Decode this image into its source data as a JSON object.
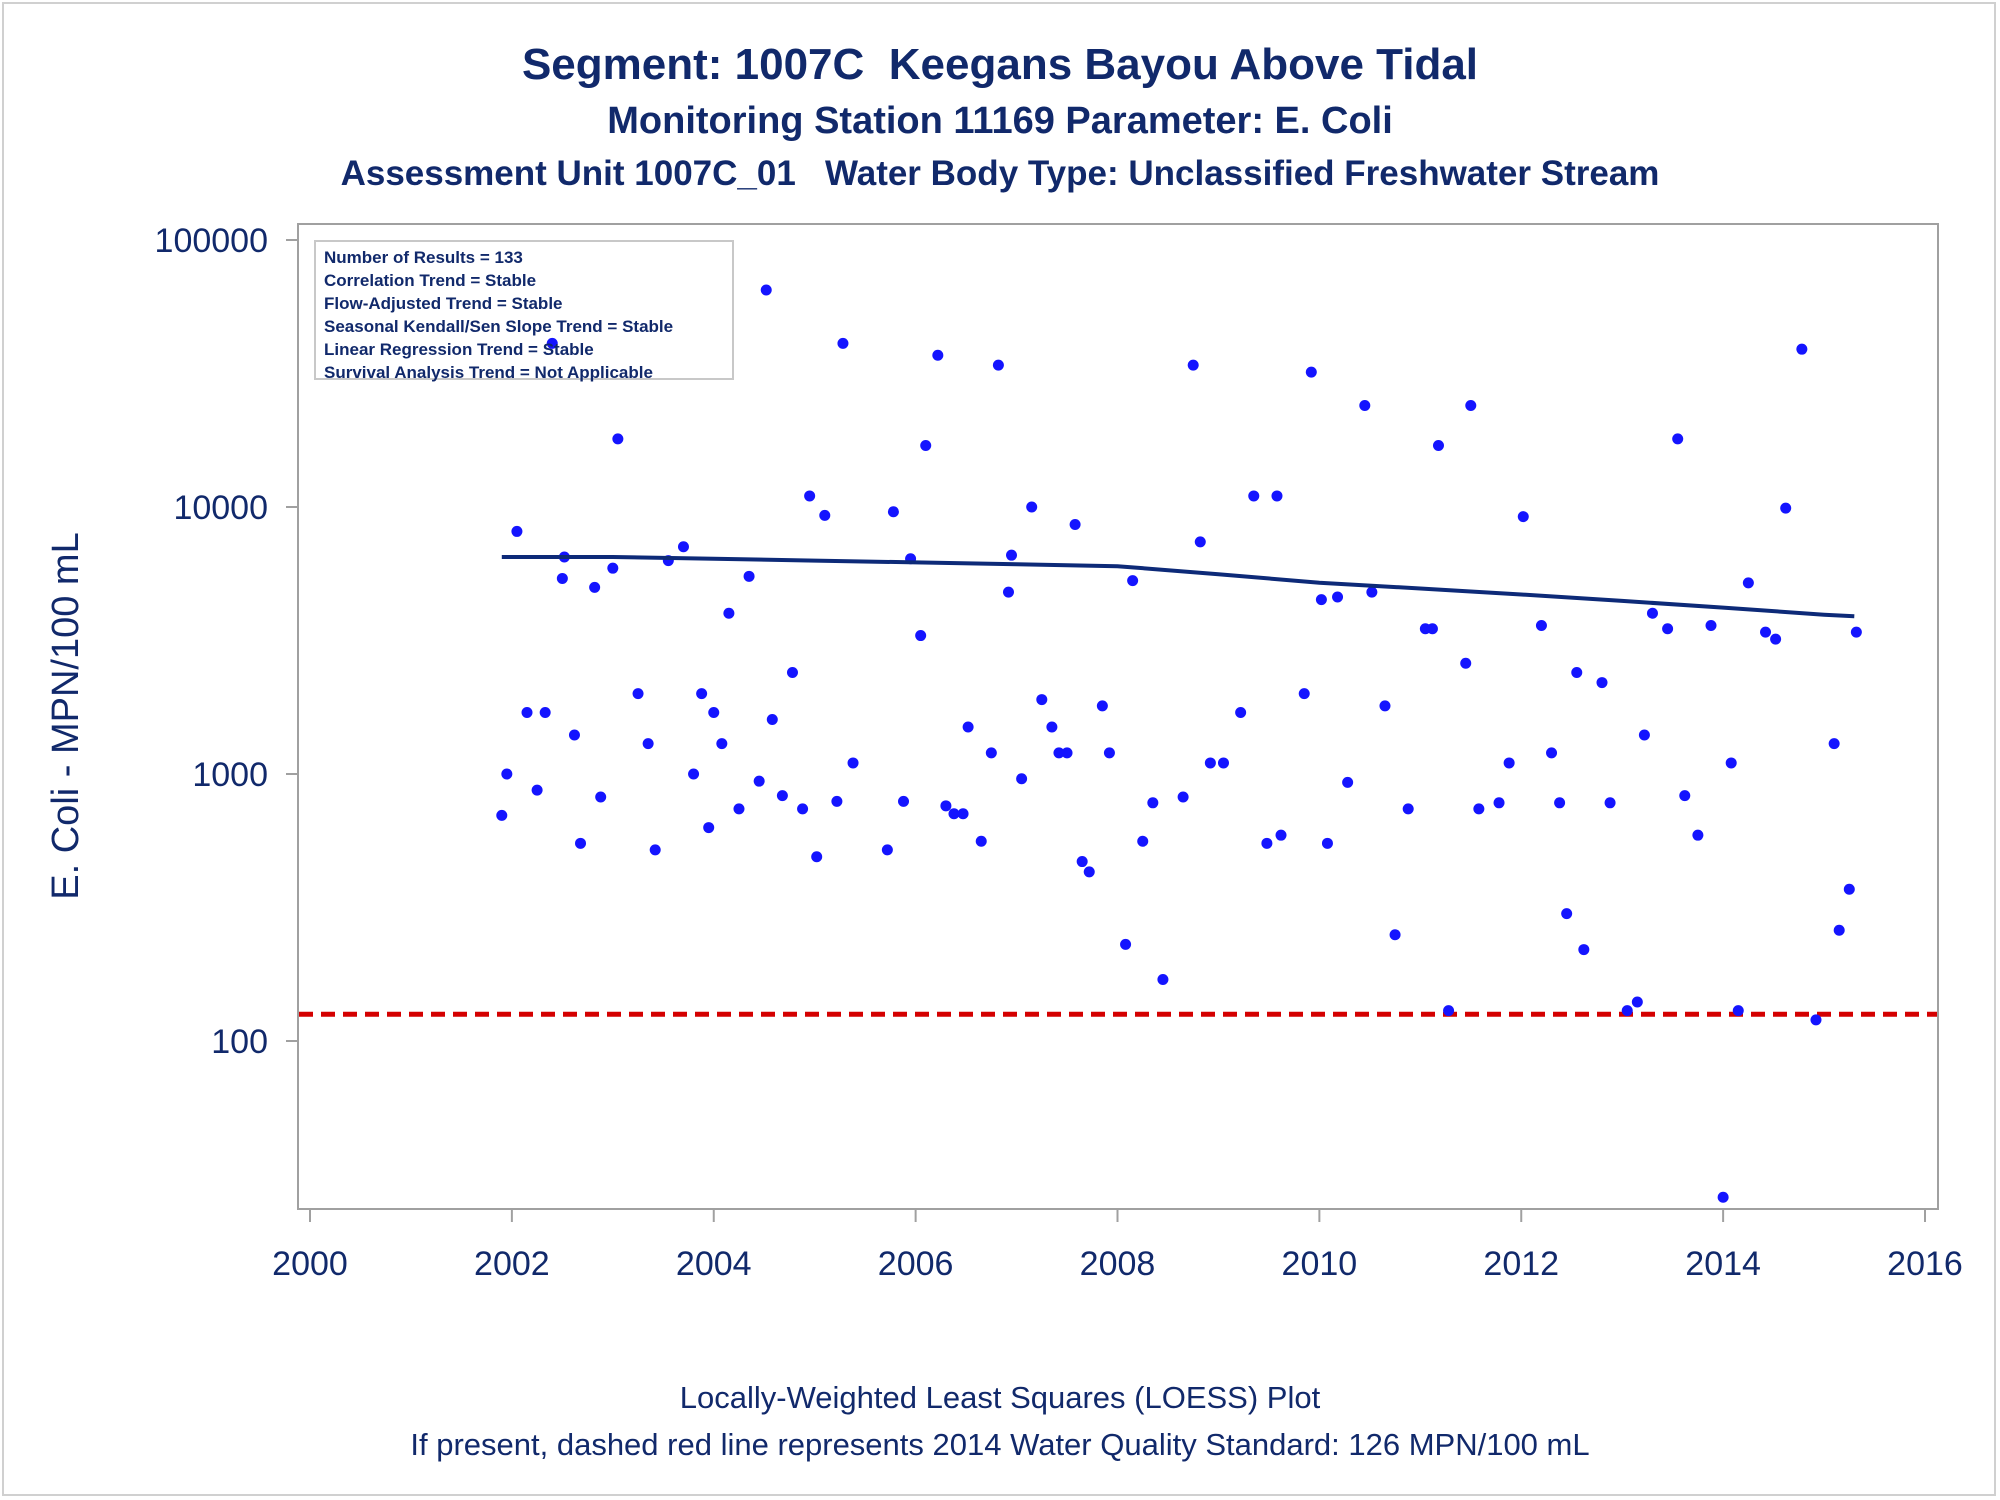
{
  "titles": {
    "line1": "Segment: 1007C  Keegans Bayou Above Tidal",
    "line2": "Monitoring Station 11169 Parameter: E. Coli",
    "line3": "Assessment Unit 1007C_01   Water Body Type: Unclassified Freshwater Stream"
  },
  "footnotes": {
    "line1": "Locally-Weighted Least Squares (LOESS) Plot",
    "line2": "If present, dashed red line represents 2014 Water Quality Standard: 126 MPN/100 mL"
  },
  "legend": {
    "lines": [
      "Number of Results = 133",
      "Correlation Trend = Stable",
      "Flow-Adjusted Trend = Stable",
      "Seasonal Kendall/Sen Slope Trend = Stable",
      "Linear Regression Trend = Stable",
      "Survival Analysis Trend = Not Applicable"
    ]
  },
  "colors": {
    "text": "#11296b",
    "points": "#1414ff",
    "loess": "#0d2a78",
    "standard_line": "#d40000",
    "axis": "#a0a0a0"
  },
  "chart_data": {
    "type": "scatter",
    "xlabel": "",
    "ylabel": "E. Coli - MPN/100 mL",
    "xlim": [
      2000,
      2016
    ],
    "ylim": [
      25,
      120000
    ],
    "yscale": "log",
    "x_ticks": [
      "2000",
      "2002",
      "2004",
      "2006",
      "2008",
      "2010",
      "2012",
      "2014",
      "2016"
    ],
    "y_ticks": [
      "100",
      "1000",
      "10000",
      "100000"
    ],
    "grid": false,
    "legend_position": "top-left",
    "reference_line": {
      "value": 126
    },
    "loess": {
      "x": [
        2001.9,
        2003,
        2004,
        2005,
        2006,
        2007,
        2008,
        2009,
        2010,
        2011,
        2012,
        2013,
        2014,
        2015,
        2015.3
      ],
      "y": [
        6500,
        6500,
        6400,
        6300,
        6200,
        6100,
        6000,
        5600,
        5200,
        4950,
        4700,
        4450,
        4200,
        3950,
        3900
      ]
    },
    "series": [
      {
        "points": [
          [
            2001.9,
            700
          ],
          [
            2001.95,
            1000
          ],
          [
            2002.05,
            8100
          ],
          [
            2002.15,
            1700
          ],
          [
            2002.25,
            870
          ],
          [
            2002.33,
            1700
          ],
          [
            2002.4,
            41000
          ],
          [
            2002.5,
            5400
          ],
          [
            2002.52,
            6500
          ],
          [
            2002.62,
            1400
          ],
          [
            2002.68,
            550
          ],
          [
            2002.82,
            5000
          ],
          [
            2002.88,
            820
          ],
          [
            2003.0,
            5900
          ],
          [
            2003.05,
            18000
          ],
          [
            2003.25,
            2000
          ],
          [
            2003.35,
            1300
          ],
          [
            2003.42,
            520
          ],
          [
            2003.55,
            6300
          ],
          [
            2003.7,
            7100
          ],
          [
            2003.8,
            1000
          ],
          [
            2003.88,
            2000
          ],
          [
            2003.95,
            630
          ],
          [
            2004.0,
            1700
          ],
          [
            2004.08,
            1300
          ],
          [
            2004.15,
            4000
          ],
          [
            2004.25,
            740
          ],
          [
            2004.35,
            5500
          ],
          [
            2004.45,
            940
          ],
          [
            2004.52,
            65000
          ],
          [
            2004.58,
            1600
          ],
          [
            2004.68,
            830
          ],
          [
            2004.78,
            2400
          ],
          [
            2004.88,
            740
          ],
          [
            2004.95,
            11000
          ],
          [
            2005.02,
            490
          ],
          [
            2005.1,
            9300
          ],
          [
            2005.22,
            790
          ],
          [
            2005.28,
            41000
          ],
          [
            2005.38,
            1100
          ],
          [
            2005.72,
            520
          ],
          [
            2005.78,
            9600
          ],
          [
            2005.88,
            790
          ],
          [
            2005.95,
            6400
          ],
          [
            2006.05,
            3300
          ],
          [
            2006.1,
            17000
          ],
          [
            2006.22,
            37000
          ],
          [
            2006.3,
            760
          ],
          [
            2006.38,
            710
          ],
          [
            2006.47,
            710
          ],
          [
            2006.52,
            1500
          ],
          [
            2006.65,
            560
          ],
          [
            2006.75,
            1200
          ],
          [
            2006.82,
            34000
          ],
          [
            2006.92,
            4800
          ],
          [
            2006.95,
            6600
          ],
          [
            2007.05,
            960
          ],
          [
            2007.15,
            10000
          ],
          [
            2007.25,
            1900
          ],
          [
            2007.35,
            1500
          ],
          [
            2007.42,
            1200
          ],
          [
            2007.5,
            1200
          ],
          [
            2007.58,
            8600
          ],
          [
            2007.65,
            470
          ],
          [
            2007.72,
            430
          ],
          [
            2007.85,
            1800
          ],
          [
            2007.92,
            1200
          ],
          [
            2008.08,
            230
          ],
          [
            2008.15,
            5300
          ],
          [
            2008.25,
            560
          ],
          [
            2008.35,
            780
          ],
          [
            2008.45,
            170
          ],
          [
            2008.65,
            820
          ],
          [
            2008.75,
            34000
          ],
          [
            2008.82,
            7400
          ],
          [
            2008.92,
            1100
          ],
          [
            2009.05,
            1100
          ],
          [
            2009.22,
            1700
          ],
          [
            2009.35,
            11000
          ],
          [
            2009.48,
            550
          ],
          [
            2009.58,
            11000
          ],
          [
            2009.62,
            590
          ],
          [
            2009.85,
            2000
          ],
          [
            2009.92,
            32000
          ],
          [
            2010.02,
            4500
          ],
          [
            2010.08,
            550
          ],
          [
            2010.18,
            4600
          ],
          [
            2010.28,
            930
          ],
          [
            2010.45,
            24000
          ],
          [
            2010.52,
            4800
          ],
          [
            2010.65,
            1800
          ],
          [
            2010.75,
            250
          ],
          [
            2010.88,
            740
          ],
          [
            2011.05,
            3500
          ],
          [
            2011.12,
            3500
          ],
          [
            2011.18,
            17000
          ],
          [
            2011.28,
            130
          ],
          [
            2011.45,
            2600
          ],
          [
            2011.5,
            24000
          ],
          [
            2011.58,
            740
          ],
          [
            2011.78,
            780
          ],
          [
            2011.88,
            1100
          ],
          [
            2012.02,
            9200
          ],
          [
            2012.2,
            3600
          ],
          [
            2012.3,
            1200
          ],
          [
            2012.38,
            780
          ],
          [
            2012.45,
            300
          ],
          [
            2012.55,
            2400
          ],
          [
            2012.62,
            220
          ],
          [
            2012.8,
            2200
          ],
          [
            2012.88,
            780
          ],
          [
            2013.05,
            130
          ],
          [
            2013.15,
            140
          ],
          [
            2013.22,
            1400
          ],
          [
            2013.3,
            4000
          ],
          [
            2013.45,
            3500
          ],
          [
            2013.55,
            18000
          ],
          [
            2013.62,
            830
          ],
          [
            2013.75,
            590
          ],
          [
            2013.88,
            3600
          ],
          [
            2014.0,
            26
          ],
          [
            2014.08,
            1100
          ],
          [
            2014.15,
            130
          ],
          [
            2014.25,
            5200
          ],
          [
            2014.42,
            3400
          ],
          [
            2014.52,
            3200
          ],
          [
            2014.62,
            9900
          ],
          [
            2014.78,
            39000
          ],
          [
            2014.92,
            120
          ],
          [
            2015.1,
            1300
          ],
          [
            2015.15,
            260
          ],
          [
            2015.25,
            370
          ],
          [
            2015.32,
            3400
          ]
        ]
      }
    ]
  }
}
